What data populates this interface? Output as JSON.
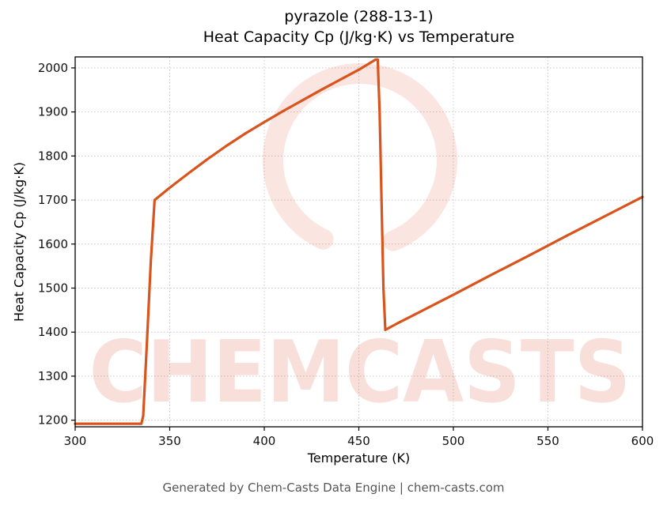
{
  "chart_data": {
    "type": "line",
    "title_line1": "pyrazole (288-13-1)",
    "title_line2": "Heat Capacity Cp (J/kg·K) vs Temperature",
    "xlabel": "Temperature (K)",
    "ylabel": "Heat Capacity Cp (J/kg·K)",
    "footer": "Generated by Chem-Casts Data Engine | chem-casts.com",
    "watermark": "CHEMCASTS",
    "line_color": "#d9541c",
    "watermark_color": "#dd4422",
    "grid": true,
    "legend": "none",
    "xlim": [
      300,
      600
    ],
    "ylim": [
      1185,
      2025
    ],
    "xticks": [
      300,
      350,
      400,
      450,
      500,
      550,
      600
    ],
    "yticks": [
      1200,
      1300,
      1400,
      1500,
      1600,
      1700,
      1800,
      1900,
      2000
    ],
    "series": [
      {
        "name": "Heat Capacity Cp",
        "points": [
          [
            300,
            1192
          ],
          [
            310,
            1192
          ],
          [
            320,
            1192
          ],
          [
            330,
            1192
          ],
          [
            335,
            1192
          ],
          [
            336,
            1210
          ],
          [
            338,
            1380
          ],
          [
            340,
            1560
          ],
          [
            342,
            1700
          ],
          [
            350,
            1728
          ],
          [
            360,
            1761
          ],
          [
            370,
            1793
          ],
          [
            380,
            1823
          ],
          [
            390,
            1851
          ],
          [
            400,
            1877
          ],
          [
            410,
            1902
          ],
          [
            420,
            1926
          ],
          [
            430,
            1950
          ],
          [
            440,
            1973
          ],
          [
            450,
            1996
          ],
          [
            457,
            2014
          ],
          [
            459,
            2019
          ],
          [
            460,
            2019
          ],
          [
            461,
            1900
          ],
          [
            462,
            1700
          ],
          [
            463,
            1500
          ],
          [
            464,
            1405
          ],
          [
            470,
            1419
          ],
          [
            480,
            1441
          ],
          [
            500,
            1485
          ],
          [
            520,
            1530
          ],
          [
            540,
            1574
          ],
          [
            560,
            1619
          ],
          [
            580,
            1663
          ],
          [
            600,
            1707
          ]
        ]
      }
    ]
  }
}
